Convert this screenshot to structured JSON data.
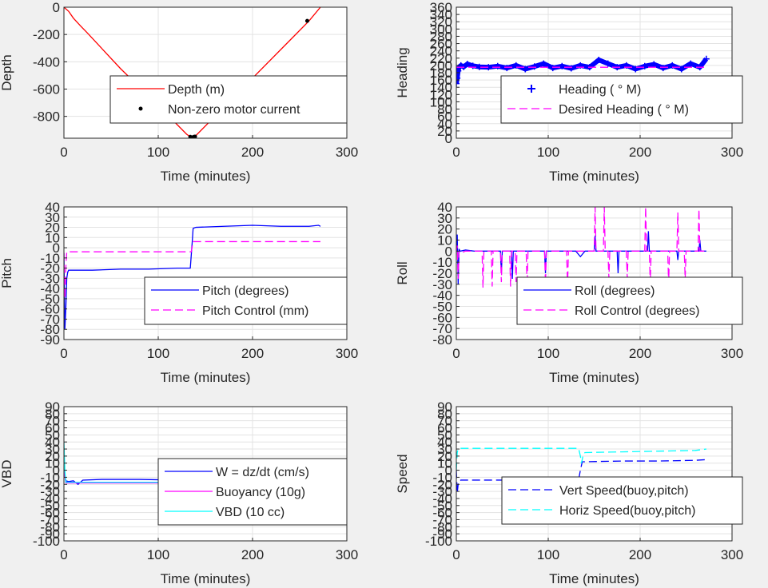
{
  "chart_data": [
    {
      "id": "depth",
      "type": "line",
      "xlabel": "Time (minutes)",
      "ylabel": "Depth",
      "xlim": [
        0,
        300
      ],
      "ylim": [
        -960,
        0
      ],
      "xticks": [
        "0",
        "100",
        "200",
        "300"
      ],
      "yticks": [
        {
          "v": 0,
          "t": "0"
        },
        {
          "v": -200,
          "t": "-200"
        },
        {
          "v": -400,
          "t": "-400"
        },
        {
          "v": -600,
          "t": "-600"
        },
        {
          "v": -800,
          "t": "-800"
        }
      ],
      "grid": true,
      "legend_position": "lower-right",
      "series": [
        {
          "name": "Depth (m)",
          "color": "#ff0000",
          "style": "solid",
          "x": [
            0,
            5,
            10,
            18,
            25,
            60,
            100,
            130,
            135,
            137,
            140,
            160,
            200,
            240,
            260,
            272
          ],
          "y": [
            0,
            -30,
            -80,
            -140,
            -190,
            -450,
            -720,
            -930,
            -955,
            -955,
            -940,
            -800,
            -520,
            -240,
            -100,
            0
          ]
        },
        {
          "name": "Non-zero motor current",
          "color": "#000000",
          "style": "markers",
          "x": [
            134,
            135,
            136,
            137,
            138,
            139,
            258
          ],
          "y": [
            -950,
            -955,
            -955,
            -953,
            -950,
            -948,
            -100
          ]
        }
      ]
    },
    {
      "id": "heading",
      "type": "line",
      "xlabel": "Time (minutes)",
      "ylabel": "Heading",
      "xlim": [
        0,
        300
      ],
      "ylim": [
        0,
        360
      ],
      "xticks": [
        "0",
        "100",
        "200",
        "300"
      ],
      "yticks": [
        {
          "v": 0,
          "t": "0"
        },
        {
          "v": 20,
          "t": "20"
        },
        {
          "v": 40,
          "t": "40"
        },
        {
          "v": 60,
          "t": "60"
        },
        {
          "v": 80,
          "t": "80"
        },
        {
          "v": 100,
          "t": "100"
        },
        {
          "v": 120,
          "t": "120"
        },
        {
          "v": 140,
          "t": "140"
        },
        {
          "v": 160,
          "t": "160"
        },
        {
          "v": 180,
          "t": "180"
        },
        {
          "v": 200,
          "t": "200"
        },
        {
          "v": 220,
          "t": "220"
        },
        {
          "v": 240,
          "t": "240"
        },
        {
          "v": 260,
          "t": "260"
        },
        {
          "v": 280,
          "t": "280"
        },
        {
          "v": 300,
          "t": "300"
        },
        {
          "v": 320,
          "t": "320"
        },
        {
          "v": 340,
          "t": "340"
        },
        {
          "v": 360,
          "t": "360"
        }
      ],
      "grid": true,
      "legend_position": "lower-right",
      "series": [
        {
          "name": "Heading (   ° M)",
          "color": "#0000ff",
          "style": "plus",
          "x": [
            0,
            1,
            2,
            3,
            5,
            8,
            12,
            18,
            25,
            35,
            45,
            55,
            65,
            75,
            85,
            95,
            105,
            115,
            125,
            135,
            145,
            155,
            165,
            175,
            185,
            195,
            205,
            215,
            225,
            235,
            245,
            255,
            265,
            272
          ],
          "y": [
            150,
            165,
            185,
            195,
            200,
            196,
            204,
            199,
            196,
            195,
            198,
            193,
            200,
            190,
            197,
            205,
            193,
            198,
            192,
            200,
            195,
            215,
            205,
            195,
            200,
            190,
            198,
            203,
            193,
            200,
            190,
            205,
            195,
            218
          ]
        },
        {
          "name": "Desired Heading (     ° M)",
          "color": "#ff00ff",
          "style": "dashed",
          "x": [
            0,
            272
          ],
          "y": [
            195,
            195
          ]
        }
      ]
    },
    {
      "id": "pitch",
      "type": "line",
      "xlabel": "Time (minutes)",
      "ylabel": "Pitch",
      "xlim": [
        0,
        300
      ],
      "ylim": [
        -90,
        40
      ],
      "xticks": [
        "0",
        "100",
        "200",
        "300"
      ],
      "yticks": [
        {
          "v": -90,
          "t": "-90"
        },
        {
          "v": -80,
          "t": "-80"
        },
        {
          "v": -70,
          "t": "-70"
        },
        {
          "v": -60,
          "t": "-60"
        },
        {
          "v": -50,
          "t": "-50"
        },
        {
          "v": -40,
          "t": "-40"
        },
        {
          "v": -30,
          "t": "-30"
        },
        {
          "v": -20,
          "t": "-20"
        },
        {
          "v": -10,
          "t": "-10"
        },
        {
          "v": 0,
          "t": "0"
        },
        {
          "v": 10,
          "t": "10"
        },
        {
          "v": 20,
          "t": "20"
        },
        {
          "v": 30,
          "t": "30"
        },
        {
          "v": 40,
          "t": "40"
        }
      ],
      "grid": true,
      "legend_position": "lower-right",
      "series": [
        {
          "name": "Pitch (degrees)",
          "color": "#0000ff",
          "style": "solid",
          "x": [
            0,
            1,
            2,
            3,
            4,
            5,
            10,
            30,
            60,
            90,
            120,
            134,
            136,
            137,
            140,
            170,
            200,
            230,
            260,
            270,
            272
          ],
          "y": [
            -5,
            -80,
            -60,
            -30,
            -24,
            -22,
            -22,
            -22,
            -21,
            -21,
            -20,
            -20,
            5,
            19,
            20,
            21,
            22,
            21,
            21,
            22,
            21
          ]
        },
        {
          "name": "Pitch Control (mm)",
          "color": "#ff00ff",
          "style": "dashed",
          "x": [
            0,
            1,
            2,
            3,
            4,
            134,
            135,
            137,
            272
          ],
          "y": [
            -5,
            -50,
            -20,
            -4,
            -4,
            -4,
            -4,
            6,
            6
          ]
        }
      ]
    },
    {
      "id": "roll",
      "type": "line",
      "xlabel": "Time (minutes)",
      "ylabel": "Roll",
      "xlim": [
        0,
        300
      ],
      "ylim": [
        -80,
        40
      ],
      "xticks": [
        "0",
        "100",
        "200",
        "300"
      ],
      "yticks": [
        {
          "v": -80,
          "t": "-80"
        },
        {
          "v": -70,
          "t": "-70"
        },
        {
          "v": -60,
          "t": "-60"
        },
        {
          "v": -50,
          "t": "-50"
        },
        {
          "v": -40,
          "t": "-40"
        },
        {
          "v": -30,
          "t": "-30"
        },
        {
          "v": -20,
          "t": "-20"
        },
        {
          "v": -10,
          "t": "-10"
        },
        {
          "v": 0,
          "t": "0"
        },
        {
          "v": 10,
          "t": "10"
        },
        {
          "v": 20,
          "t": "20"
        },
        {
          "v": 30,
          "t": "30"
        },
        {
          "v": 40,
          "t": "40"
        }
      ],
      "grid": true,
      "legend_position": "lower-right",
      "series": [
        {
          "name": "Roll (degrees)",
          "color": "#0000ff",
          "style": "solid",
          "x": [
            0,
            1,
            2,
            3,
            4,
            10,
            20,
            30,
            48,
            49,
            50,
            60,
            61,
            62,
            75,
            96,
            97,
            98,
            120,
            130,
            135,
            140,
            150,
            151,
            152,
            160,
            175,
            176,
            177,
            200,
            208,
            209,
            210,
            230,
            240,
            241,
            242,
            255,
            264,
            265,
            266,
            272
          ],
          "y": [
            0,
            15,
            -30,
            2,
            0,
            1,
            0,
            0,
            0,
            -20,
            0,
            0,
            -25,
            0,
            0,
            0,
            -20,
            0,
            0,
            0,
            -5,
            0,
            0,
            14,
            0,
            0,
            0,
            -20,
            0,
            0,
            0,
            18,
            0,
            0,
            0,
            -8,
            0,
            0,
            0,
            10,
            0,
            0
          ]
        },
        {
          "name": "Roll Control (degrees)",
          "color": "#ff00ff",
          "style": "dashed",
          "x": [
            0,
            1,
            2,
            3,
            4,
            10,
            28,
            29,
            30,
            38,
            39,
            40,
            48,
            49,
            50,
            58,
            59,
            60,
            64,
            65,
            66,
            76,
            77,
            78,
            96,
            97,
            98,
            120,
            121,
            122,
            145,
            150,
            151,
            152,
            160,
            161,
            162,
            165,
            166,
            167,
            185,
            186,
            187,
            205,
            206,
            207,
            210,
            211,
            212,
            230,
            231,
            232,
            240,
            241,
            242,
            248,
            249,
            250,
            263,
            264,
            265,
            272
          ],
          "y": [
            0,
            5,
            -25,
            0,
            -2,
            0,
            0,
            -33,
            0,
            0,
            -32,
            0,
            0,
            -28,
            0,
            0,
            -32,
            0,
            0,
            -28,
            0,
            0,
            -32,
            0,
            0,
            -30,
            0,
            0,
            -33,
            0,
            0,
            0,
            40,
            0,
            0,
            40,
            0,
            0,
            -25,
            0,
            0,
            -25,
            0,
            0,
            40,
            0,
            0,
            -30,
            0,
            0,
            -30,
            0,
            0,
            35,
            0,
            0,
            -25,
            0,
            0,
            38,
            0,
            0
          ]
        }
      ]
    },
    {
      "id": "vbd",
      "type": "line",
      "xlabel": "Time (minutes)",
      "ylabel": "VBD",
      "xlim": [
        0,
        300
      ],
      "ylim": [
        -100,
        90
      ],
      "xticks": [
        "0",
        "100",
        "200",
        "300"
      ],
      "yticks": [
        {
          "v": -100,
          "t": "-100"
        },
        {
          "v": -90,
          "t": "-90"
        },
        {
          "v": -80,
          "t": "-80"
        },
        {
          "v": -70,
          "t": "-70"
        },
        {
          "v": -60,
          "t": "-60"
        },
        {
          "v": -50,
          "t": "-50"
        },
        {
          "v": -40,
          "t": "-40"
        },
        {
          "v": -30,
          "t": "-30"
        },
        {
          "v": -20,
          "t": "-20"
        },
        {
          "v": -10,
          "t": "-10"
        },
        {
          "v": 0,
          "t": "0"
        },
        {
          "v": 10,
          "t": "10"
        },
        {
          "v": 20,
          "t": "20"
        },
        {
          "v": 30,
          "t": "30"
        },
        {
          "v": 40,
          "t": "40"
        },
        {
          "v": 50,
          "t": "50"
        },
        {
          "v": 60,
          "t": "60"
        },
        {
          "v": 70,
          "t": "70"
        },
        {
          "v": 80,
          "t": "80"
        },
        {
          "v": 90,
          "t": "90"
        }
      ],
      "grid": true,
      "legend_position": "lower-right",
      "series": [
        {
          "name": "W = dz/dt (cm/s)",
          "color": "#0000ff",
          "style": "solid",
          "x": [
            0,
            1,
            2,
            5,
            10,
            15,
            20,
            40,
            80,
            120,
            133,
            135,
            137,
            140,
            180,
            220,
            260,
            270,
            272
          ],
          "y": [
            0,
            -5,
            -15,
            -16,
            -15,
            -20,
            -14,
            -13,
            -13,
            -14,
            -14,
            0,
            12,
            12,
            12,
            13,
            14,
            15,
            12
          ]
        },
        {
          "name": "Buoyancy (10g)",
          "color": "#ff00ff",
          "style": "solid",
          "x": [
            0,
            2,
            3,
            134,
            136,
            138,
            272
          ],
          "y": [
            0,
            -18,
            -18,
            -18,
            0,
            15,
            15
          ]
        },
        {
          "name": "VBD (10 cc)",
          "color": "#00ffff",
          "style": "solid",
          "x": [
            0,
            1,
            2,
            3,
            134,
            136,
            138,
            272
          ],
          "y": [
            40,
            0,
            -17,
            -17,
            -17,
            0,
            16,
            16
          ]
        }
      ]
    },
    {
      "id": "speed",
      "type": "line",
      "xlabel": "Time (minutes)",
      "ylabel": "Speed",
      "xlim": [
        0,
        300
      ],
      "ylim": [
        -100,
        90
      ],
      "xticks": [
        "0",
        "100",
        "200",
        "300"
      ],
      "yticks": [
        {
          "v": -100,
          "t": "-100"
        },
        {
          "v": -90,
          "t": "-90"
        },
        {
          "v": -80,
          "t": "-80"
        },
        {
          "v": -70,
          "t": "-70"
        },
        {
          "v": -60,
          "t": "-60"
        },
        {
          "v": -50,
          "t": "-50"
        },
        {
          "v": -40,
          "t": "-40"
        },
        {
          "v": -30,
          "t": "-30"
        },
        {
          "v": -20,
          "t": "-20"
        },
        {
          "v": -10,
          "t": "-10"
        },
        {
          "v": 0,
          "t": "0"
        },
        {
          "v": 10,
          "t": "10"
        },
        {
          "v": 20,
          "t": "20"
        },
        {
          "v": 30,
          "t": "30"
        },
        {
          "v": 40,
          "t": "40"
        },
        {
          "v": 50,
          "t": "50"
        },
        {
          "v": 60,
          "t": "60"
        },
        {
          "v": 70,
          "t": "70"
        },
        {
          "v": 80,
          "t": "80"
        },
        {
          "v": 90,
          "t": "90"
        }
      ],
      "grid": true,
      "legend_position": "lower-right",
      "series": [
        {
          "name": "Vert Speed(buoy,pitch)",
          "color": "#0000ff",
          "style": "dashed",
          "x": [
            0,
            1,
            2,
            3,
            5,
            20,
            60,
            100,
            130,
            133,
            135,
            137,
            140,
            180,
            220,
            260,
            272
          ],
          "y": [
            0,
            -32,
            -20,
            -15,
            -14,
            -14,
            -14,
            -14,
            -14,
            -14,
            0,
            12,
            12,
            13,
            13,
            14,
            15
          ]
        },
        {
          "name": "Horiz Speed(buoy,pitch)",
          "color": "#00ffff",
          "style": "dashed",
          "x": [
            0,
            1,
            2,
            3,
            10,
            60,
            100,
            130,
            133,
            135,
            136,
            137,
            138,
            140,
            180,
            220,
            260,
            272
          ],
          "y": [
            0,
            25,
            30,
            31,
            31,
            31,
            31,
            31,
            31,
            20,
            10,
            15,
            22,
            25,
            26,
            27,
            28,
            30
          ]
        }
      ]
    }
  ]
}
